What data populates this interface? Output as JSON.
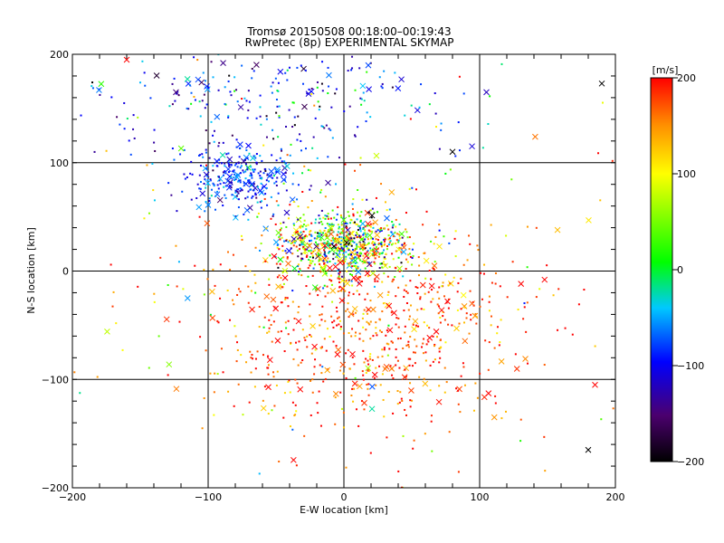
{
  "chart_data": {
    "type": "scatter",
    "title": "Tromsø 20150508 00:18:00–00:19:43",
    "subtitle": "RwPretec (8p) EXPERIMENTAL SKYMAP",
    "xlabel": "E-W location [km]",
    "ylabel": "N-S location [km]",
    "xlim": [
      -200,
      200
    ],
    "ylim": [
      -200,
      200
    ],
    "xticks": [
      -200,
      -100,
      0,
      100,
      200
    ],
    "yticks": [
      -200,
      -100,
      0,
      100,
      200
    ],
    "grid": true,
    "colorbar": {
      "label": "[m/s]",
      "range": [
        -200,
        200
      ],
      "ticks": [
        -200,
        -100,
        0,
        100,
        200
      ],
      "colormap": [
        "#000000",
        "#4b006e",
        "#0000ff",
        "#00c8ff",
        "#00ff00",
        "#ffff00",
        "#ff8c00",
        "#ff0000"
      ]
    },
    "markers": [
      "dot (small)",
      "x (large)"
    ],
    "clusters": [
      {
        "x": 0,
        "y": 25,
        "spread_x": 25,
        "spread_y": 15,
        "count": 700,
        "velocity_mean": 40,
        "velocity_sd": 110
      },
      {
        "x": -75,
        "y": 85,
        "spread_x": 22,
        "spread_y": 14,
        "count": 280,
        "velocity_mean": -85,
        "velocity_sd": 30
      },
      {
        "x": 20,
        "y": -50,
        "spread_x": 60,
        "spread_y": 45,
        "count": 650,
        "velocity_mean": 175,
        "velocity_sd": 40
      },
      {
        "x": -60,
        "y": 155,
        "spread_x": 70,
        "spread_y": 30,
        "count": 260,
        "velocity_mean": -90,
        "velocity_sd": 50
      },
      {
        "x": 0,
        "y": 0,
        "spread_x": 110,
        "spread_y": 110,
        "count": 250,
        "velocity_mean": 120,
        "velocity_sd": 110
      }
    ],
    "sample_points": [
      {
        "x": 190,
        "y": 173,
        "v": -200
      },
      {
        "x": -160,
        "y": 195,
        "v": 200
      },
      {
        "x": 180,
        "y": -165,
        "v": -200
      },
      {
        "x": 80,
        "y": 110,
        "v": -200
      },
      {
        "x": 105,
        "y": 165,
        "v": -120
      },
      {
        "x": 185,
        "y": -105,
        "v": 200
      }
    ]
  }
}
